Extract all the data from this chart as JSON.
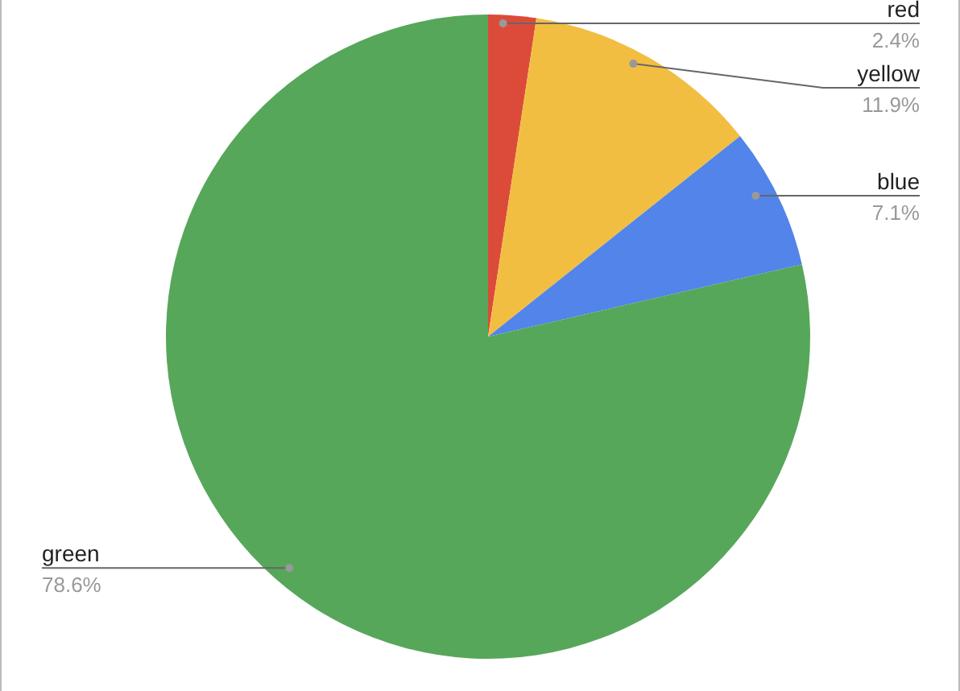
{
  "chart_data": {
    "type": "pie",
    "categories": [
      "red",
      "yellow",
      "blue",
      "green"
    ],
    "values": [
      2.4,
      11.9,
      7.1,
      78.6
    ],
    "colors": [
      "#dc4b3a",
      "#f2be42",
      "#5284ea",
      "#57a75a"
    ],
    "value_labels": [
      "2.4%",
      "11.9%",
      "7.1%",
      "78.6%"
    ]
  }
}
